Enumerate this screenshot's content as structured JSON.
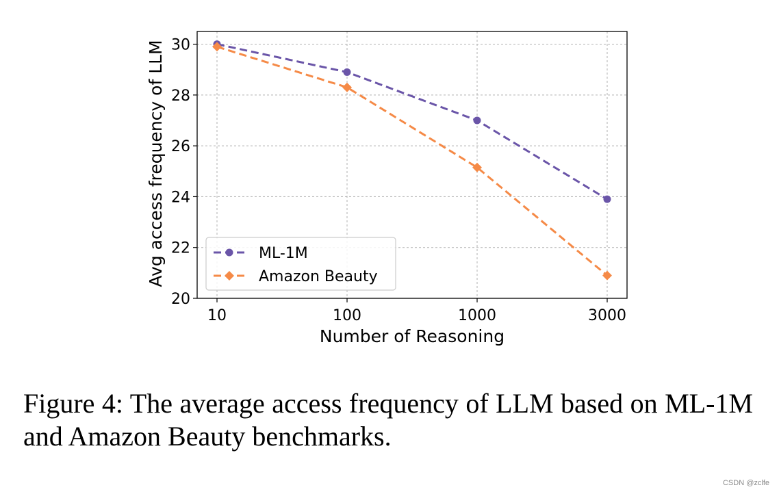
{
  "chart_data": {
    "type": "line",
    "x": [
      "10",
      "100",
      "1000",
      "3000"
    ],
    "xlabel": "Number of Reasoning",
    "ylabel": "Avg access frequency of LLM",
    "ylim": [
      20,
      30.5
    ],
    "yticks": [
      20,
      22,
      24,
      26,
      28,
      30
    ],
    "grid": true,
    "legend_position": "lower-left",
    "series": [
      {
        "name": "ML-1M",
        "marker": "circle",
        "color": "#6a55a8",
        "values": [
          30.0,
          28.9,
          27.0,
          23.9
        ]
      },
      {
        "name": "Amazon Beauty",
        "marker": "diamond",
        "color": "#f58a47",
        "values": [
          29.9,
          28.3,
          25.15,
          20.9
        ]
      }
    ]
  },
  "caption": "Figure 4: The average access frequency of LLM based on ML-1M and Amazon Beauty benchmarks.",
  "watermark": "CSDN @zclfe"
}
